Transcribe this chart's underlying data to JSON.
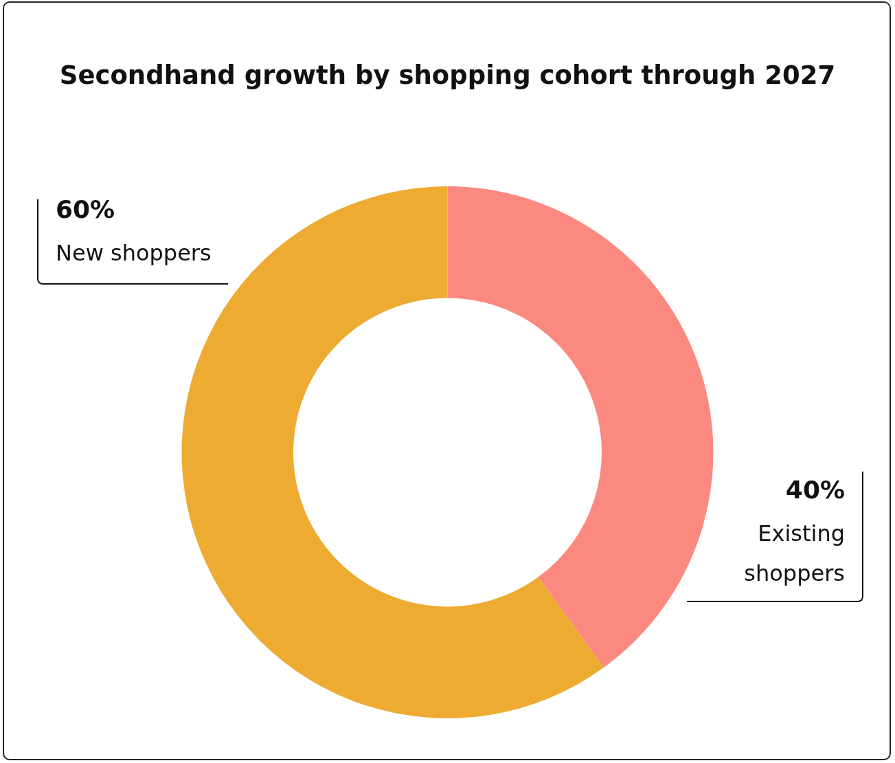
{
  "chart_data": {
    "type": "donut",
    "title": "Secondhand growth by shopping cohort through 2027",
    "categories": [
      "Existing shoppers",
      "New shoppers"
    ],
    "values": [
      40,
      60
    ],
    "colors": [
      "#fc8980",
      "#edab32"
    ],
    "value_labels": [
      "40%",
      "60%"
    ],
    "legend": false
  }
}
